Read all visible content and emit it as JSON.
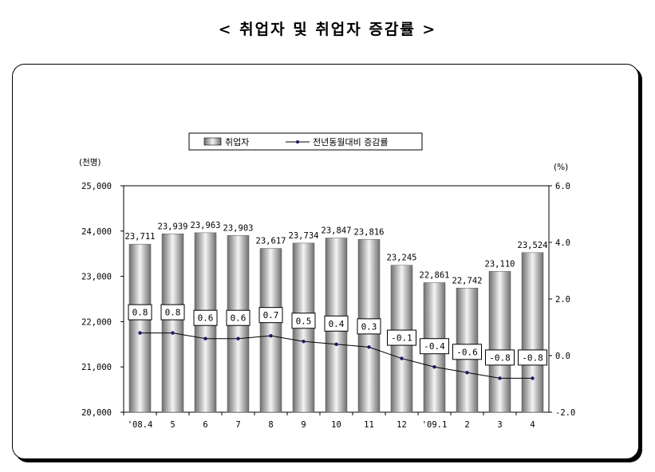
{
  "page": {
    "title": "< 취업자 및 취업자 증감률 >"
  },
  "chart_data": {
    "type": "bar",
    "categories": [
      "'08.4",
      "5",
      "6",
      "7",
      "8",
      "9",
      "10",
      "11",
      "12",
      "'09.1",
      "2",
      "3",
      "4"
    ],
    "series": [
      {
        "name": "취업자",
        "type": "bar",
        "axis": "left",
        "values": [
          23711,
          23939,
          23963,
          23903,
          23617,
          23734,
          23847,
          23816,
          23245,
          22861,
          22742,
          23110,
          23524
        ],
        "value_labels": [
          "23,711",
          "23,939",
          "23,963",
          "23,903",
          "23,617",
          "23,734",
          "23,847",
          "23,816",
          "23,245",
          "22,861",
          "22,742",
          "23,110",
          "23,524"
        ]
      },
      {
        "name": "전년동월대비 증감률",
        "type": "line",
        "axis": "right",
        "values": [
          0.8,
          0.8,
          0.6,
          0.6,
          0.7,
          0.5,
          0.4,
          0.3,
          -0.1,
          -0.4,
          -0.6,
          -0.8,
          -0.8
        ],
        "value_labels": [
          "0.8",
          "0.8",
          "0.6",
          "0.6",
          "0.7",
          "0.5",
          "0.4",
          "0.3",
          "-0.1",
          "-0.4",
          "-0.6",
          "-0.8",
          "-0.8"
        ]
      }
    ],
    "left_axis": {
      "unit_label": "(천명)",
      "ylim": [
        20000,
        25000
      ],
      "ticks": [
        "20,000",
        "21,000",
        "22,000",
        "23,000",
        "24,000",
        "25,000"
      ]
    },
    "right_axis": {
      "unit_label": "(%)",
      "ylim": [
        -2.0,
        6.0
      ],
      "ticks": [
        "-2.0",
        "0.0",
        "2.0",
        "4.0",
        "6.0"
      ]
    },
    "legend_position": "top-center",
    "grid": false
  }
}
